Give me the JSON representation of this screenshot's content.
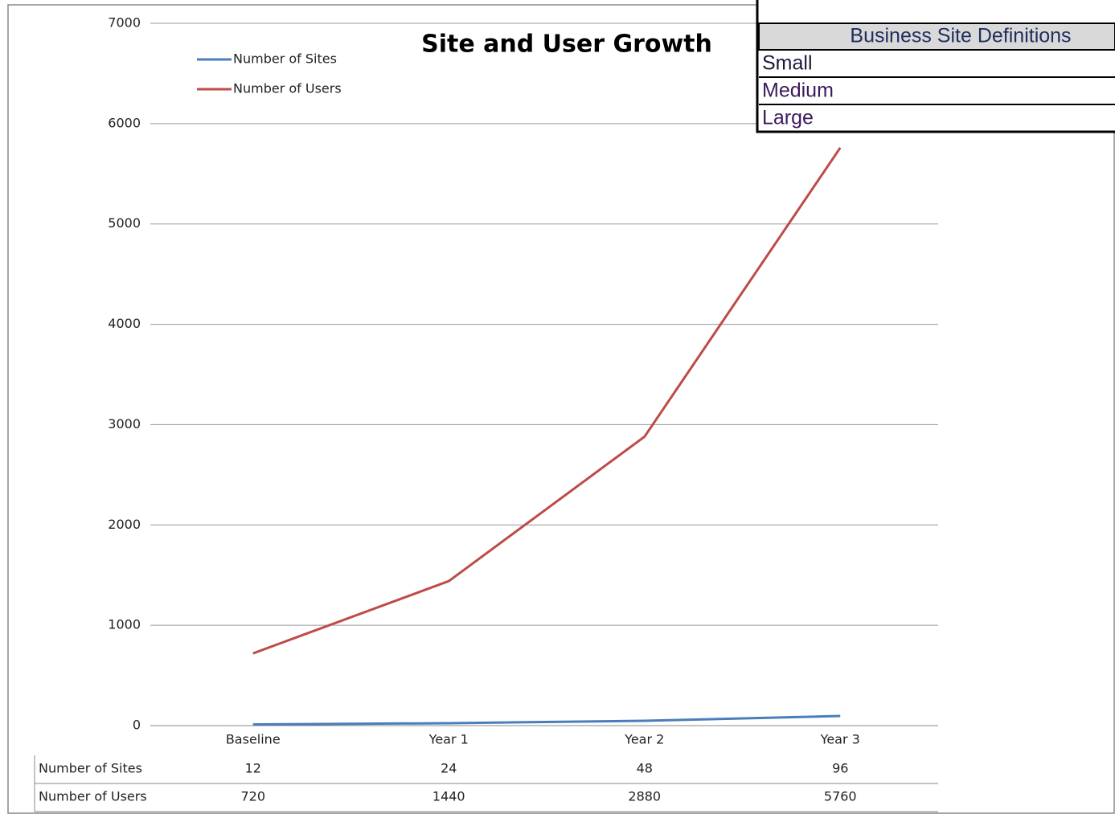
{
  "chart_data": {
    "type": "line",
    "title": "Site and User Growth",
    "categories": [
      "Baseline",
      "Year 1",
      "Year 2",
      "Year 3"
    ],
    "series": [
      {
        "name": "Number of Sites",
        "color": "#4a7ebb",
        "values": [
          12,
          24,
          48,
          96
        ]
      },
      {
        "name": "Number of Users",
        "color": "#be4b48",
        "values": [
          720,
          1440,
          2880,
          5760
        ]
      }
    ],
    "ylim": [
      0,
      7000
    ],
    "yticks": [
      0,
      1000,
      2000,
      3000,
      4000,
      5000,
      6000,
      7000
    ],
    "grid": true,
    "legend": "top-left",
    "data_table": true
  },
  "site_definitions": {
    "header": "Business Site Definitions",
    "rows": [
      "Small",
      "Medium",
      "Large"
    ]
  }
}
